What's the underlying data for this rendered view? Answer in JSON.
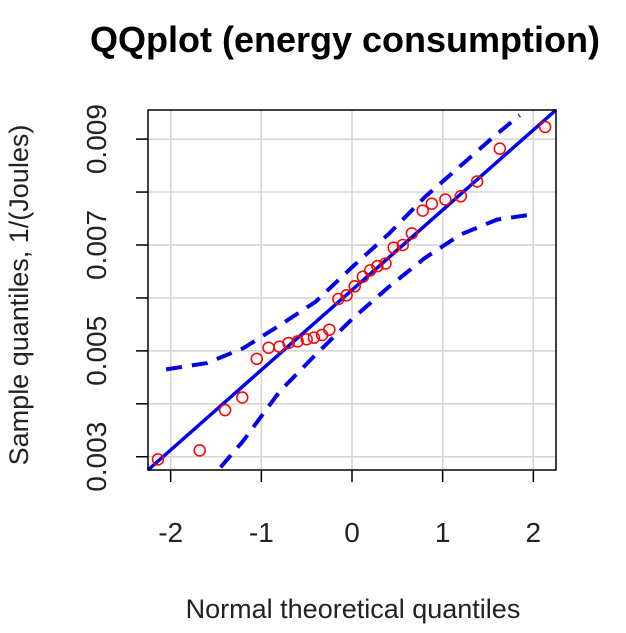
{
  "chart_data": {
    "type": "scatter",
    "title": "QQplot (energy consumption)",
    "xlabel": "Normal theoretical quantiles",
    "ylabel": "Sample quantiles, 1/(Joules)",
    "xlim": [
      -2.25,
      2.25
    ],
    "ylim": [
      0.00275,
      0.00955
    ],
    "x_ticks": [
      -2,
      -1,
      0,
      1,
      2
    ],
    "x_tick_labels": [
      "-2",
      "-1",
      "0",
      "1",
      "2"
    ],
    "y_ticks": [
      0.003,
      0.004,
      0.005,
      0.006,
      0.007,
      0.008,
      0.009
    ],
    "y_tick_labels": [
      "0.003",
      "0.005",
      "0.007",
      "0.009"
    ],
    "y_tick_label_values": [
      0.003,
      0.005,
      0.007,
      0.009
    ],
    "grid": true,
    "points": {
      "color": "#ff0000",
      "x": [
        -2.14,
        -1.68,
        -1.4,
        -1.21,
        -1.05,
        -0.92,
        -0.8,
        -0.7,
        -0.6,
        -0.5,
        -0.42,
        -0.33,
        -0.25,
        -0.15,
        -0.06,
        0.03,
        0.12,
        0.2,
        0.28,
        0.37,
        0.46,
        0.56,
        0.66,
        0.78,
        0.88,
        1.03,
        1.2,
        1.38,
        1.63,
        2.13
      ],
      "y": [
        0.00295,
        0.00312,
        0.00388,
        0.00412,
        0.00485,
        0.00506,
        0.00508,
        0.00515,
        0.00518,
        0.00522,
        0.00525,
        0.0053,
        0.0054,
        0.00598,
        0.00605,
        0.00622,
        0.0064,
        0.00652,
        0.0066,
        0.00665,
        0.00695,
        0.007,
        0.00722,
        0.00765,
        0.00778,
        0.00786,
        0.00792,
        0.0082,
        0.00882,
        0.00923
      ]
    },
    "reference_line": {
      "color": "#0000ee",
      "x": [
        -2.25,
        2.25
      ],
      "y": [
        0.00275,
        0.00955
      ]
    },
    "confidence_band": {
      "color": "#0000ee",
      "upper": {
        "x": [
          -2.05,
          -1.6,
          -1.2,
          -0.8,
          -0.4,
          0.0,
          0.4,
          0.8,
          1.2,
          1.6,
          1.85
        ],
        "y": [
          0.00465,
          0.00477,
          0.00505,
          0.00548,
          0.00593,
          0.00658,
          0.0072,
          0.0079,
          0.0085,
          0.0091,
          0.00945
        ]
      },
      "lower": {
        "x": [
          -1.45,
          -1.2,
          -0.8,
          -0.4,
          0.0,
          0.4,
          0.8,
          1.2,
          1.6,
          2.0
        ],
        "y": [
          0.0028,
          0.0033,
          0.00423,
          0.00493,
          0.0056,
          0.0062,
          0.00675,
          0.0072,
          0.00748,
          0.00758
        ]
      }
    }
  }
}
